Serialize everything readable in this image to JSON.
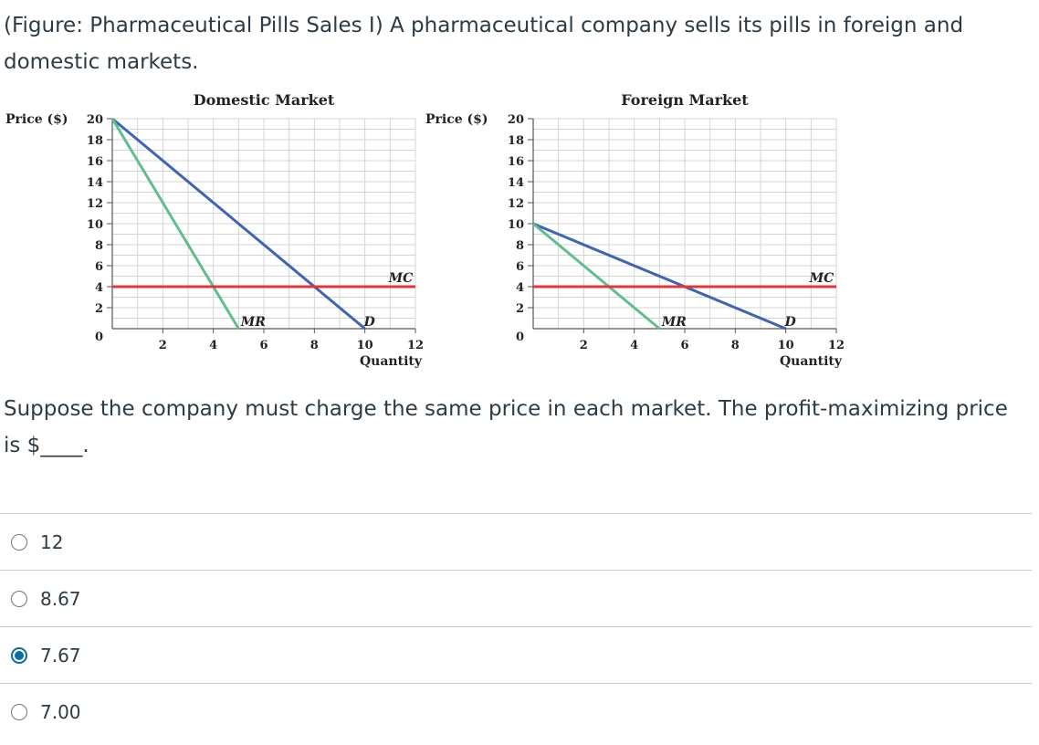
{
  "intro_text": "(Figure: Pharmaceutical Pills Sales I) A pharmaceutical company sells its pills in foreign and domestic markets.",
  "question_text": "Suppose the company must charge the same price in each market. The profit-maximizing price is $____.",
  "options": [
    {
      "label": "12",
      "selected": false
    },
    {
      "label": "8.67",
      "selected": false
    },
    {
      "label": "7.67",
      "selected": true
    },
    {
      "label": "7.00",
      "selected": false
    }
  ],
  "colors": {
    "demand": "#3f63b5",
    "mr": "#5fbf8c",
    "mc": "#e0383a",
    "grid": "#d4d4d4"
  },
  "chart_data": [
    {
      "type": "line",
      "title": "Domestic Market",
      "ylabel": "Price ($)",
      "xlabel": "Quantity",
      "xlim": [
        0,
        12
      ],
      "ylim": [
        0,
        20
      ],
      "x_ticks": [
        2,
        4,
        6,
        8,
        10,
        12
      ],
      "y_ticks": [
        2,
        4,
        6,
        8,
        10,
        12,
        14,
        16,
        18,
        20
      ],
      "series": [
        {
          "name": "D",
          "points": [
            [
              0,
              20
            ],
            [
              10,
              0
            ]
          ],
          "color": "#3f63b5"
        },
        {
          "name": "MR",
          "points": [
            [
              0,
              20
            ],
            [
              5,
              0
            ]
          ],
          "color": "#5fbf8c"
        },
        {
          "name": "MC",
          "points": [
            [
              0,
              4
            ],
            [
              12,
              4
            ]
          ],
          "color": "#e0383a"
        }
      ]
    },
    {
      "type": "line",
      "title": "Foreign Market",
      "ylabel": "Price ($)",
      "xlabel": "Quantity",
      "xlim": [
        0,
        12
      ],
      "ylim": [
        0,
        20
      ],
      "x_ticks": [
        2,
        4,
        6,
        8,
        10,
        12
      ],
      "y_ticks": [
        2,
        4,
        6,
        8,
        10,
        12,
        14,
        16,
        18,
        20
      ],
      "series": [
        {
          "name": "D",
          "points": [
            [
              0,
              10
            ],
            [
              10,
              0
            ]
          ],
          "color": "#3f63b5"
        },
        {
          "name": "MR",
          "points": [
            [
              0,
              10
            ],
            [
              5,
              0
            ]
          ],
          "color": "#5fbf8c"
        },
        {
          "name": "MC",
          "points": [
            [
              0,
              4
            ],
            [
              12,
              4
            ]
          ],
          "color": "#e0383a"
        }
      ]
    }
  ]
}
